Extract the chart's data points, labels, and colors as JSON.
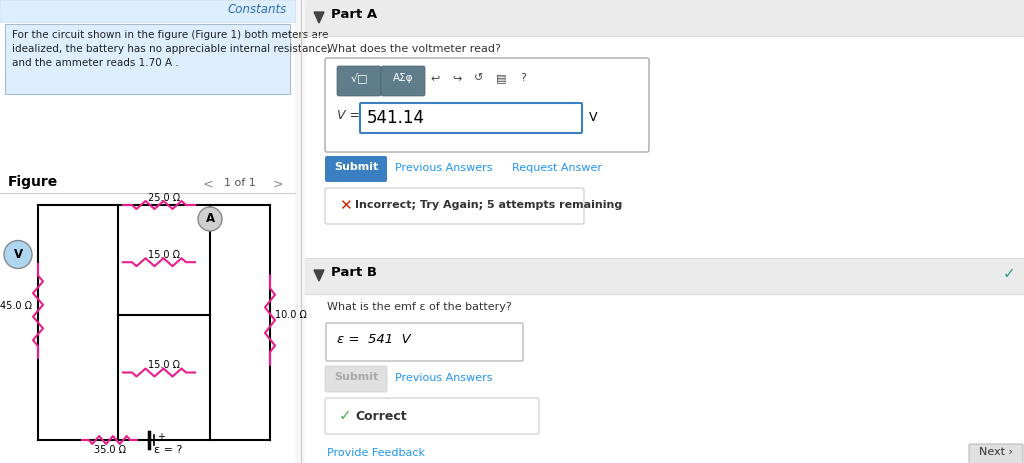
{
  "constants_text": "Constants",
  "problem_text_line1": "For the circuit shown in the figure (Figure 1) both meters are",
  "problem_text_line2": "idealized, the battery has no appreciable internal resistance,",
  "problem_text_line3": "and the ammeter reads 1.70 A .",
  "figure_label": "Figure",
  "figure_nav": "1 of 1",
  "part_a_label": "Part A",
  "part_a_question": "What does the voltmeter read?",
  "answer_a_value": "541.14",
  "answer_a_unit": "V",
  "submit_color": "#3a7fc1",
  "incorrect_text": "Incorrect; Try Again; 5 attempts remaining",
  "part_b_label": "Part B",
  "part_b_question": "What is the emf ε of the battery?",
  "answer_b_display": "ε =  541  V",
  "correct_text": "Correct",
  "provide_feedback": "Provide Feedback",
  "next_text": "Next ›",
  "emf_label": "ε = ?",
  "circuit_wire_color": "#000000",
  "resistor_color_pink": "#e91e8c",
  "voltmeter_color": "#aed6f1",
  "header_bg": "#ddeeff",
  "part_header_bg": "#ebebeb",
  "correct_green": "#4caf50",
  "incorrect_red": "#cc2200",
  "link_blue": "#2196f3",
  "check_teal": "#2a9d8f",
  "bg_white": "#ffffff",
  "bg_light": "#f5f5f5",
  "divider_color": "#cccccc"
}
